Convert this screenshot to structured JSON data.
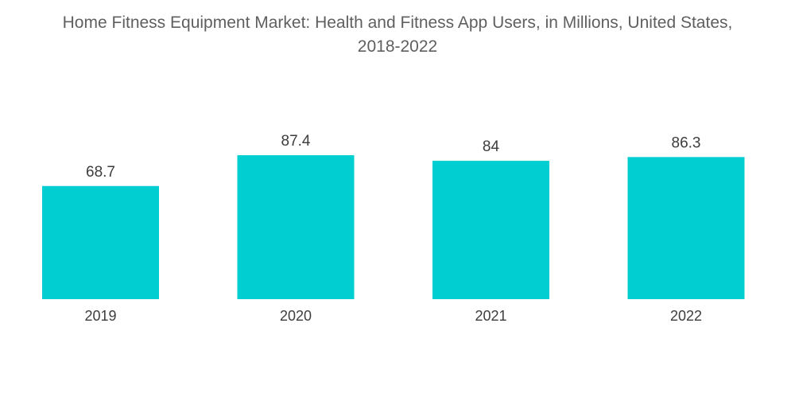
{
  "chart_data": {
    "type": "bar",
    "title_line1": "Home Fitness Equipment Market: Health and Fitness App Users, in Millions, United States,",
    "title_line2": "2018-2022",
    "xlabel": "",
    "ylabel": "",
    "categories": [
      "2019",
      "2020",
      "2021",
      "2022"
    ],
    "values": [
      68.7,
      87.4,
      84,
      86.3
    ],
    "value_labels": [
      "68.7",
      "87.4",
      "84",
      "86.3"
    ],
    "bar_color": "#00ced1",
    "grid": false,
    "legend": "none"
  }
}
